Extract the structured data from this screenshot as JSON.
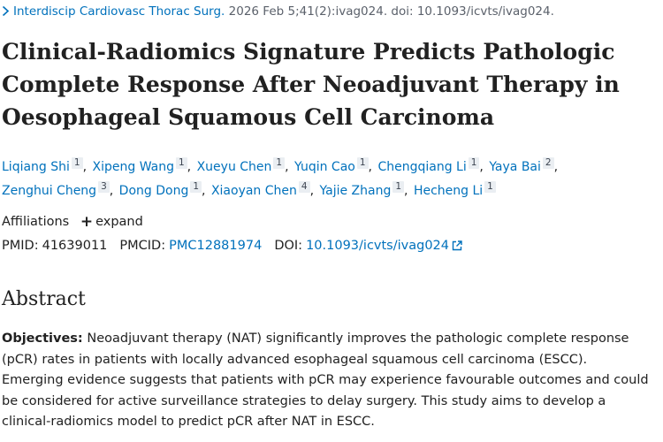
{
  "citation": {
    "journal": "Interdiscip Cardiovasc Thorac Surg.",
    "details": "2026 Feb 5;41(2):ivag024. doi: 10.1093/icvts/ivag024."
  },
  "title": "Clinical-Radiomics Signature Predicts Pathologic Complete Response After Neoadjuvant Therapy in Oesophageal Squamous Cell Carcinoma",
  "authors": [
    {
      "name": "Liqiang Shi",
      "aff": "1"
    },
    {
      "name": "Xipeng Wang",
      "aff": "1"
    },
    {
      "name": "Xueyu Chen",
      "aff": "1"
    },
    {
      "name": "Yuqin Cao",
      "aff": "1"
    },
    {
      "name": "Chengqiang Li",
      "aff": "1"
    },
    {
      "name": "Yaya Bai",
      "aff": "2"
    },
    {
      "name": "Zenghui Cheng",
      "aff": "3"
    },
    {
      "name": "Dong Dong",
      "aff": "1"
    },
    {
      "name": "Xiaoyan Chen",
      "aff": "4"
    },
    {
      "name": "Yajie Zhang",
      "aff": "1"
    },
    {
      "name": "Hecheng Li",
      "aff": "1"
    }
  ],
  "affiliations": {
    "label": "Affiliations",
    "expand_label": "expand"
  },
  "identifiers": {
    "pmid_label": "PMID:",
    "pmid": "41639011",
    "pmcid_label": "PMCID:",
    "pmcid": "PMC12881974",
    "doi_label": "DOI:",
    "doi": "10.1093/icvts/ivag024"
  },
  "abstract": {
    "heading": "Abstract",
    "objectives_label": "Objectives:",
    "objectives_text": "Neoadjuvant therapy (NAT) significantly improves the pathologic complete response (pCR) rates in patients with locally advanced esophageal squamous cell carcinoma (ESCC). Emerging evidence suggests that patients with pCR may experience favourable outcomes and could be considered for active surveillance strategies to delay surgery. This study aims to develop a clinical-radiomics model to predict pCR after NAT in ESCC."
  },
  "colors": {
    "link": "#0071bc",
    "text": "#212121",
    "muted": "#5b616b",
    "sup_bg": "#eaeef2"
  }
}
